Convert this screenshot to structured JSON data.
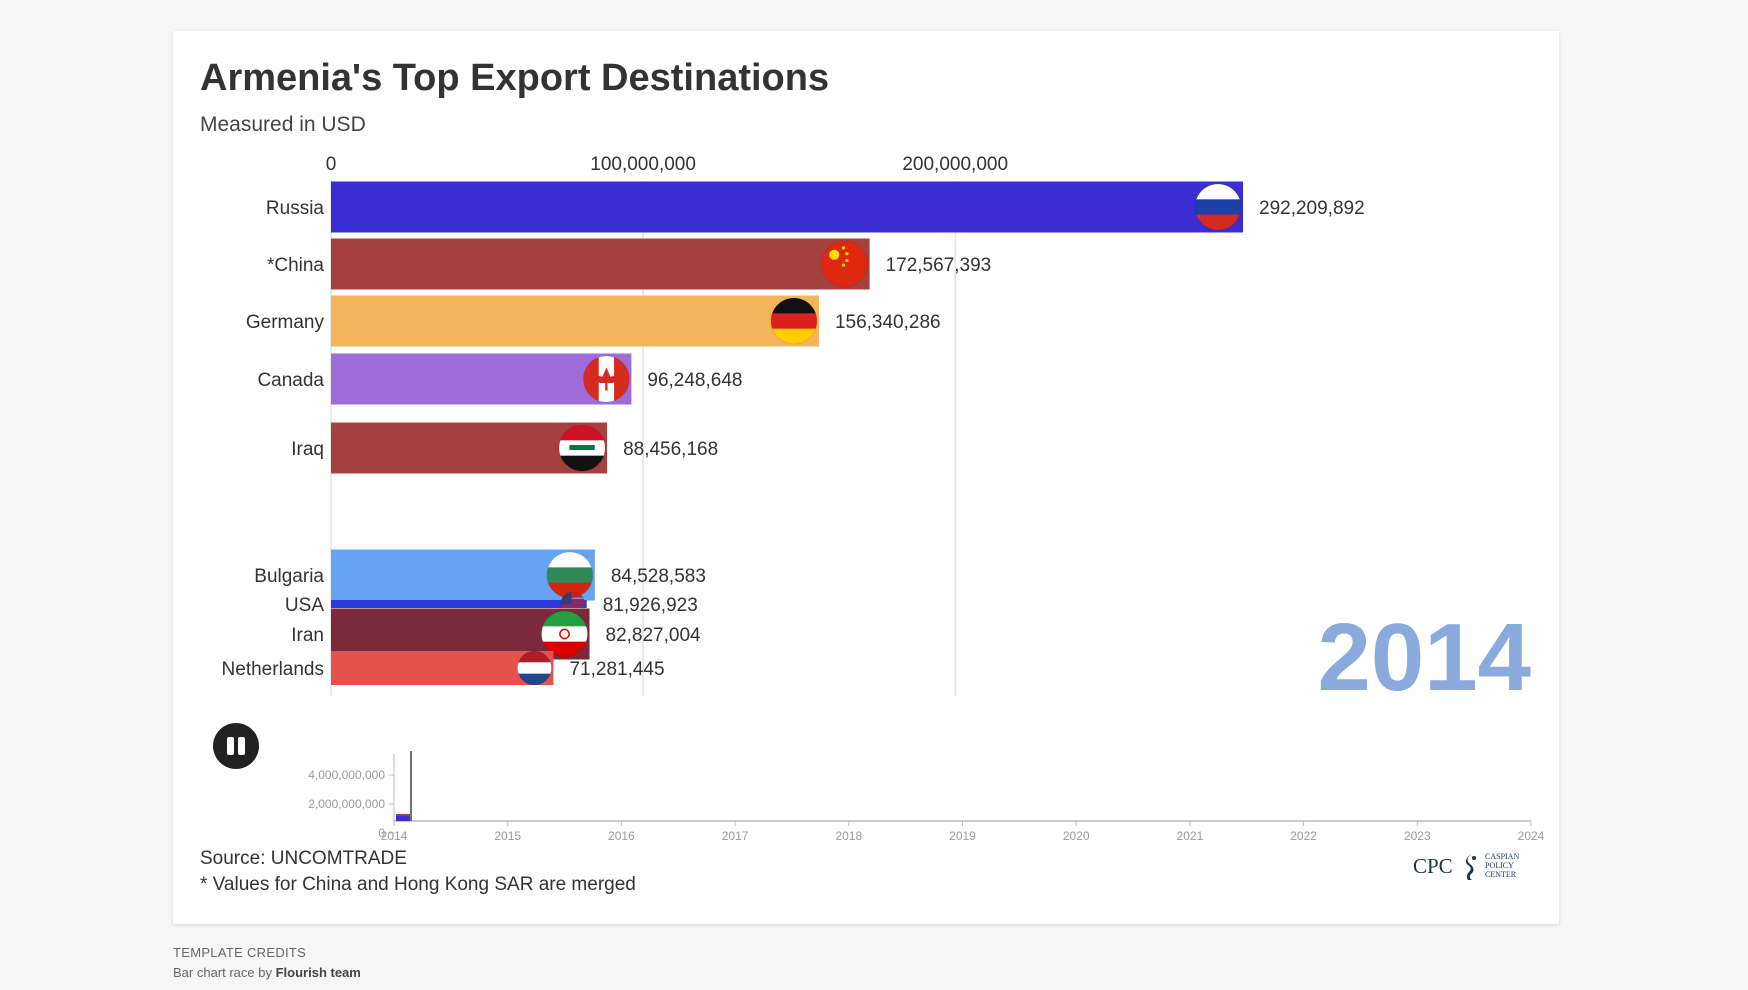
{
  "title": "Armenia's Top Export Destinations",
  "subtitle": "Measured in USD",
  "chart_data": {
    "type": "bar",
    "orientation": "horizontal",
    "title": "Armenia's Top Export Destinations",
    "subtitle": "Measured in USD",
    "xlim": [
      0,
      292209892
    ],
    "x_ticks": [
      {
        "value": 0,
        "label": "0"
      },
      {
        "value": 100000000,
        "label": "100,000,000"
      },
      {
        "value": 200000000,
        "label": "200,000,000"
      }
    ],
    "bars": [
      {
        "name": "Russia",
        "value": 292209892,
        "value_label": "292,209,892",
        "color": "#3a2ed3",
        "flag": "russia"
      },
      {
        "name": "*China",
        "value": 172567393,
        "value_label": "172,567,393",
        "color": "#a4403e",
        "flag": "china"
      },
      {
        "name": "Germany",
        "value": 156340286,
        "value_label": "156,340,286",
        "color": "#f4b45a",
        "flag": "germany"
      },
      {
        "name": "Canada",
        "value": 96248648,
        "value_label": "96,248,648",
        "color": "#9e6bd9",
        "flag": "canada"
      },
      {
        "name": "Iraq",
        "value": 88456168,
        "value_label": "88,456,168",
        "color": "#a4403e",
        "flag": "iraq"
      },
      {
        "name": "Bulgaria",
        "value": 84528583,
        "value_label": "84,528,583",
        "color": "#66a4f3",
        "flag": "bulgaria"
      },
      {
        "name": "USA",
        "value": 81926923,
        "value_label": "81,926,923",
        "color": "#2c3ae0",
        "flag": "usa"
      },
      {
        "name": "Iran",
        "value": 82827004,
        "value_label": "82,827,004",
        "color": "#7a2a3a",
        "flag": "iran"
      },
      {
        "name": "Netherlands",
        "value": 71281445,
        "value_label": "71,281,445",
        "color": "#e4524b",
        "flag": "netherlands"
      }
    ],
    "year": "2014",
    "timeline": {
      "y_ticks": [
        "4,000,000,000",
        "2,000,000,000",
        "0"
      ],
      "x_ticks": [
        "2014",
        "2015",
        "2016",
        "2017",
        "2018",
        "2019",
        "2020",
        "2021",
        "2022",
        "2023",
        "2024"
      ],
      "progress_year": 2014
    }
  },
  "controls": {
    "play_state": "pause-icon"
  },
  "source": {
    "line1": "Source: UNCOMTRADE",
    "line2": "* Values for China and Hong Kong SAR are merged"
  },
  "logo": {
    "text": "CPC",
    "small": [
      "CASPIAN",
      "POLICY",
      "CENTER"
    ]
  },
  "credits": {
    "caption": "TEMPLATE CREDITS",
    "prefix": "Bar chart race by ",
    "author": "Flourish team"
  }
}
